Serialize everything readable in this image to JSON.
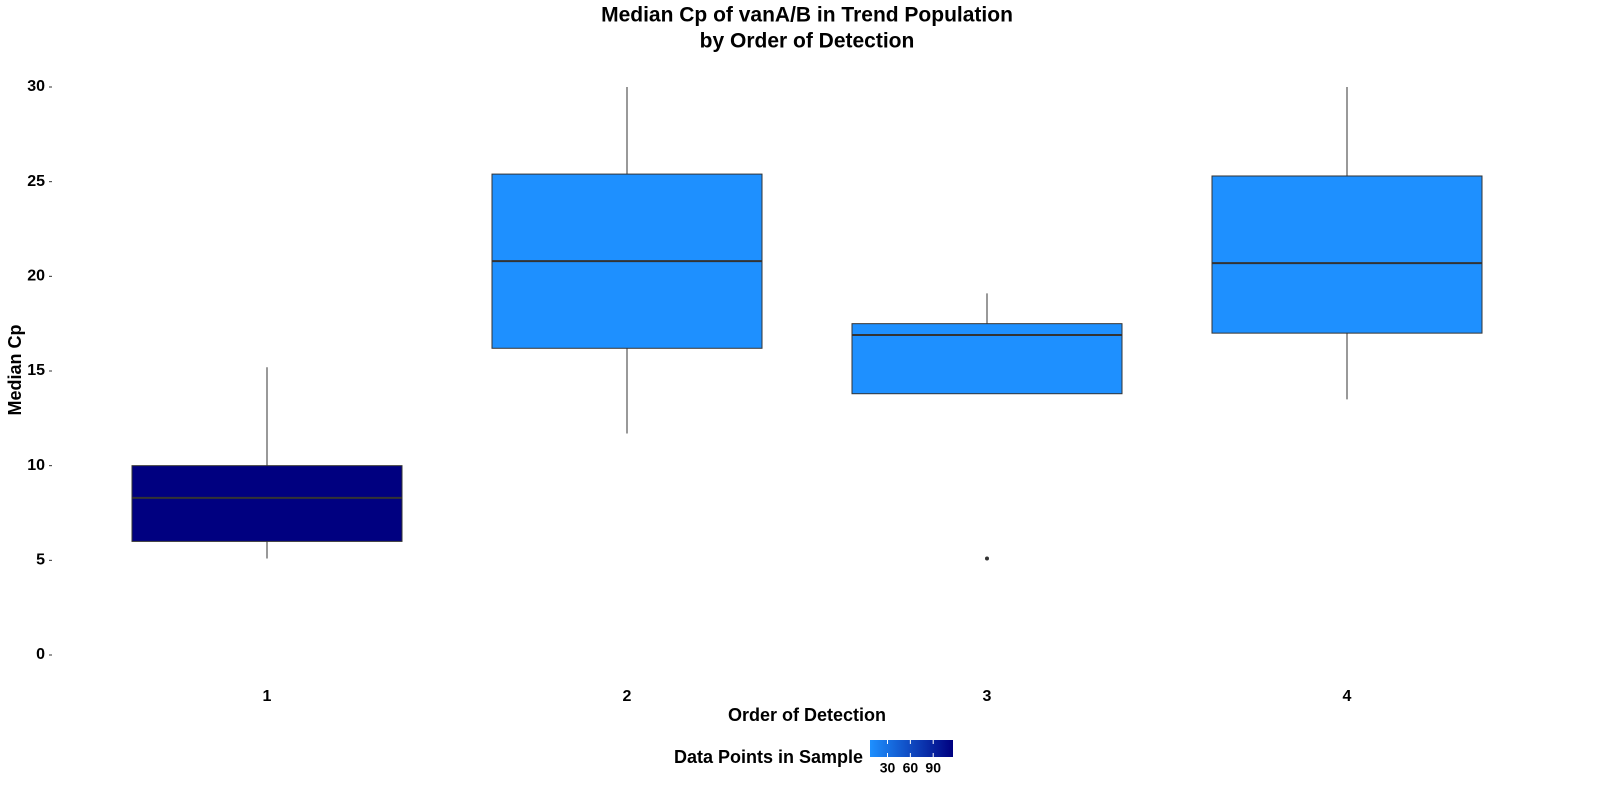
{
  "chart_data": {
    "type": "box",
    "title": [
      "Median Cp of vanA/B in Trend Population",
      "by Order of Detection"
    ],
    "x_label": "Order of Detection",
    "y_label": "Median Cp",
    "categories": [
      "1",
      "2",
      "3",
      "4"
    ],
    "boxes": [
      {
        "whisker_low": 5.1,
        "q1": 6.0,
        "median": 8.3,
        "q3": 10.0,
        "whisker_high": 15.2,
        "color": "#000080",
        "outliers": []
      },
      {
        "whisker_low": 11.7,
        "q1": 16.2,
        "median": 20.8,
        "q3": 25.4,
        "whisker_high": 30.0,
        "color": "#1e90ff",
        "outliers": []
      },
      {
        "whisker_low": 13.8,
        "q1": 13.8,
        "median": 16.9,
        "q3": 17.5,
        "whisker_high": 19.1,
        "color": "#1e90ff",
        "outliers": [
          5.1
        ]
      },
      {
        "whisker_low": 13.5,
        "q1": 17.0,
        "median": 20.7,
        "q3": 25.3,
        "whisker_high": 30.0,
        "color": "#1e90ff",
        "outliers": []
      }
    ],
    "ylim": [
      -1.5,
      31.5
    ],
    "yticks": [
      0,
      5,
      10,
      15,
      20,
      25,
      30
    ],
    "grid": false,
    "colorbar": {
      "title": "Data Points in Sample",
      "lim": [
        7,
        116
      ],
      "ticks": [
        30,
        60,
        90
      ],
      "low_color": "#1e90ff",
      "high_color": "#000080"
    }
  }
}
